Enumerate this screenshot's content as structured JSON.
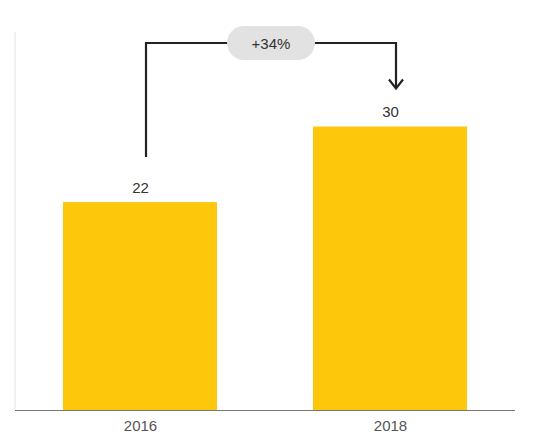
{
  "chart_data": {
    "type": "bar",
    "categories": [
      "2016",
      "2018"
    ],
    "values": [
      22,
      30
    ],
    "color": "#fdc70c",
    "ylim": [
      0,
      40
    ],
    "data_labels": true,
    "tick_labels": "x",
    "annotation": "+34%"
  }
}
